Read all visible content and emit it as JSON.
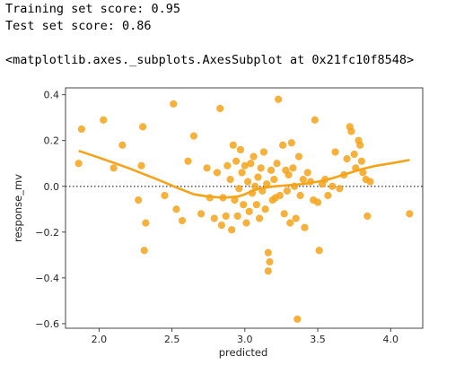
{
  "output": {
    "train_score": "Training set score: 0.95",
    "test_score": "Test set score: 0.86",
    "axes_repr": "<matplotlib.axes._subplots.AxesSubplot at 0x21fc10f8548>"
  },
  "chart_data": {
    "type": "scatter",
    "xlabel": "predicted",
    "ylabel": "response_mv",
    "xlim": [
      1.77,
      4.22
    ],
    "ylim": [
      -0.62,
      0.43
    ],
    "xticks": [
      2.0,
      2.5,
      3.0,
      3.5,
      4.0
    ],
    "xtick_labels": [
      "2.0",
      "2.5",
      "3.0",
      "3.5",
      "4.0"
    ],
    "yticks": [
      0.4,
      0.2,
      0.0,
      -0.2,
      -0.4,
      -0.6
    ],
    "ytick_labels": [
      "0.4",
      "0.2",
      "0.0",
      "−0.2",
      "−0.4",
      "−0.6"
    ],
    "reference_line_y": 0.0,
    "point_color": "#f5a31a",
    "line_color": "#f5a31a",
    "reference_line_color": "#555555",
    "grid": false,
    "points": [
      [
        1.86,
        0.1
      ],
      [
        1.88,
        0.25
      ],
      [
        2.03,
        0.29
      ],
      [
        2.1,
        0.08
      ],
      [
        2.16,
        0.18
      ],
      [
        2.27,
        -0.06
      ],
      [
        2.29,
        0.09
      ],
      [
        2.3,
        0.26
      ],
      [
        2.31,
        -0.28
      ],
      [
        2.32,
        -0.16
      ],
      [
        2.45,
        -0.04
      ],
      [
        2.51,
        0.36
      ],
      [
        2.53,
        -0.1
      ],
      [
        2.57,
        -0.15
      ],
      [
        2.61,
        0.11
      ],
      [
        2.65,
        0.22
      ],
      [
        2.7,
        -0.12
      ],
      [
        2.74,
        0.08
      ],
      [
        2.76,
        -0.05
      ],
      [
        2.79,
        -0.14
      ],
      [
        2.81,
        0.06
      ],
      [
        2.83,
        0.34
      ],
      [
        2.84,
        -0.17
      ],
      [
        2.85,
        -0.05
      ],
      [
        2.87,
        -0.13
      ],
      [
        2.88,
        0.09
      ],
      [
        2.9,
        0.03
      ],
      [
        2.91,
        -0.19
      ],
      [
        2.92,
        0.18
      ],
      [
        2.93,
        -0.06
      ],
      [
        2.94,
        0.11
      ],
      [
        2.95,
        -0.13
      ],
      [
        2.96,
        -0.01
      ],
      [
        2.97,
        0.16
      ],
      [
        2.98,
        0.06
      ],
      [
        2.99,
        -0.08
      ],
      [
        3.0,
        0.09
      ],
      [
        3.01,
        -0.16
      ],
      [
        3.02,
        0.02
      ],
      [
        3.03,
        -0.11
      ],
      [
        3.04,
        0.1
      ],
      [
        3.05,
        -0.03
      ],
      [
        3.06,
        0.13
      ],
      [
        3.07,
        0.0
      ],
      [
        3.08,
        -0.08
      ],
      [
        3.09,
        0.04
      ],
      [
        3.1,
        -0.14
      ],
      [
        3.11,
        0.08
      ],
      [
        3.12,
        -0.02
      ],
      [
        3.13,
        0.15
      ],
      [
        3.14,
        -0.1
      ],
      [
        3.15,
        0.01
      ],
      [
        3.16,
        -0.29
      ],
      [
        3.16,
        -0.37
      ],
      [
        3.17,
        -0.33
      ],
      [
        3.18,
        0.07
      ],
      [
        3.19,
        -0.06
      ],
      [
        3.2,
        0.03
      ],
      [
        3.21,
        -0.05
      ],
      [
        3.22,
        0.1
      ],
      [
        3.23,
        0.38
      ],
      [
        3.24,
        -0.04
      ],
      [
        3.26,
        0.18
      ],
      [
        3.27,
        -0.12
      ],
      [
        3.28,
        0.07
      ],
      [
        3.29,
        -0.02
      ],
      [
        3.3,
        0.05
      ],
      [
        3.31,
        -0.16
      ],
      [
        3.32,
        0.19
      ],
      [
        3.33,
        0.08
      ],
      [
        3.34,
        0.0
      ],
      [
        3.35,
        -0.14
      ],
      [
        3.36,
        -0.58
      ],
      [
        3.37,
        0.13
      ],
      [
        3.38,
        -0.04
      ],
      [
        3.4,
        0.03
      ],
      [
        3.41,
        -0.18
      ],
      [
        3.43,
        0.06
      ],
      [
        3.45,
        0.02
      ],
      [
        3.47,
        -0.06
      ],
      [
        3.48,
        0.29
      ],
      [
        3.5,
        -0.07
      ],
      [
        3.51,
        -0.28
      ],
      [
        3.53,
        0.01
      ],
      [
        3.55,
        0.03
      ],
      [
        3.57,
        -0.04
      ],
      [
        3.6,
        0.0
      ],
      [
        3.62,
        0.15
      ],
      [
        3.65,
        -0.01
      ],
      [
        3.68,
        0.05
      ],
      [
        3.7,
        0.12
      ],
      [
        3.72,
        0.26
      ],
      [
        3.73,
        0.24
      ],
      [
        3.75,
        0.14
      ],
      [
        3.76,
        0.08
      ],
      [
        3.78,
        0.2
      ],
      [
        3.79,
        0.18
      ],
      [
        3.8,
        0.11
      ],
      [
        3.81,
        0.06
      ],
      [
        3.83,
        0.03
      ],
      [
        3.84,
        -0.13
      ],
      [
        3.86,
        0.02
      ],
      [
        4.13,
        -0.12
      ]
    ],
    "fit_line": [
      [
        1.86,
        0.155
      ],
      [
        2.0,
        0.125
      ],
      [
        2.2,
        0.08
      ],
      [
        2.4,
        0.03
      ],
      [
        2.55,
        -0.01
      ],
      [
        2.65,
        -0.035
      ],
      [
        2.75,
        -0.045
      ],
      [
        2.85,
        -0.05
      ],
      [
        2.95,
        -0.045
      ],
      [
        3.0,
        -0.035
      ],
      [
        3.05,
        -0.02
      ],
      [
        3.1,
        -0.01
      ],
      [
        3.2,
        0.0
      ],
      [
        3.3,
        0.005
      ],
      [
        3.4,
        0.01
      ],
      [
        3.5,
        0.02
      ],
      [
        3.6,
        0.035
      ],
      [
        3.7,
        0.055
      ],
      [
        3.8,
        0.075
      ],
      [
        3.9,
        0.09
      ],
      [
        4.0,
        0.1
      ],
      [
        4.13,
        0.115
      ]
    ]
  }
}
